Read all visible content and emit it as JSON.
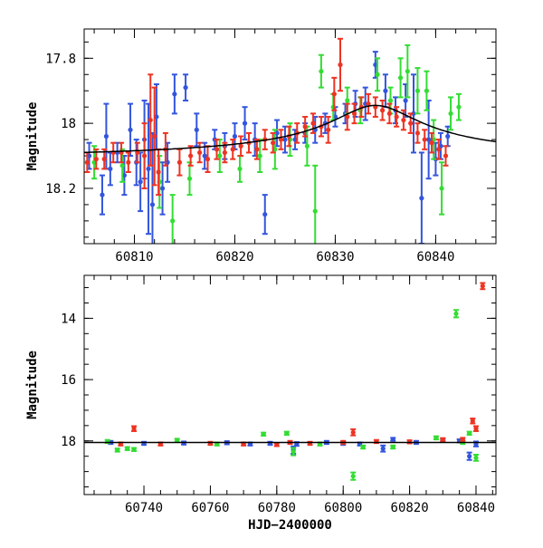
{
  "chart_data": [
    {
      "type": "scatter",
      "ylabel": "Magnitude",
      "xlabel": "",
      "xlim": [
        60805,
        60846
      ],
      "ylim": [
        18.37,
        17.71
      ],
      "y_inverted": true,
      "xticks": [
        60810,
        60820,
        60830,
        60840
      ],
      "yticks": [
        17.8,
        18,
        18.2
      ],
      "model_curve": {
        "type": "line",
        "color": "#000000",
        "peak_x": 60834,
        "peak_y": 17.945,
        "baseline_y": 18.115
      },
      "series": [
        {
          "color": "#3355dd",
          "points": [
            [
              60805.5,
              18.1,
              0.04
            ],
            [
              60806.8,
              18.22,
              0.06
            ],
            [
              60807.2,
              18.04,
              0.1
            ],
            [
              60807.6,
              18.14,
              0.05
            ],
            [
              60808.3,
              18.09,
              0.03
            ],
            [
              60809.0,
              18.16,
              0.06
            ],
            [
              60809.6,
              18.02,
              0.08
            ],
            [
              60810.2,
              18.12,
              0.07
            ],
            [
              60810.6,
              18.18,
              0.09
            ],
            [
              60811.0,
              18.05,
              0.12
            ],
            [
              60811.4,
              18.14,
              0.2
            ],
            [
              60811.8,
              18.25,
              0.22
            ],
            [
              60812.2,
              17.98,
              0.1
            ],
            [
              60812.8,
              18.2,
              0.08
            ],
            [
              60813.3,
              18.12,
              0.06
            ],
            [
              60814.0,
              17.91,
              0.06
            ],
            [
              60815.1,
              17.89,
              0.04
            ],
            [
              60816.2,
              18.02,
              0.05
            ],
            [
              60817.0,
              18.1,
              0.04
            ],
            [
              60818.0,
              18.05,
              0.03
            ],
            [
              60819.0,
              18.07,
              0.04
            ],
            [
              60820.0,
              18.04,
              0.04
            ],
            [
              60821.0,
              18.0,
              0.05
            ],
            [
              60822.0,
              18.05,
              0.05
            ],
            [
              60823.0,
              18.28,
              0.06
            ],
            [
              60824.2,
              18.03,
              0.04
            ],
            [
              60825.0,
              18.05,
              0.04
            ],
            [
              60826.0,
              18.05,
              0.03
            ],
            [
              60827.0,
              18.03,
              0.03
            ],
            [
              60828.0,
              18.02,
              0.04
            ],
            [
              60829.0,
              18.0,
              0.03
            ],
            [
              60830.0,
              17.98,
              0.03
            ],
            [
              60831.0,
              17.97,
              0.03
            ],
            [
              60832.0,
              17.94,
              0.04
            ],
            [
              60833.0,
              17.94,
              0.05
            ],
            [
              60834.0,
              17.82,
              0.04
            ],
            [
              60835.0,
              17.9,
              0.05
            ],
            [
              60836.0,
              17.96,
              0.04
            ],
            [
              60837.0,
              17.93,
              0.05
            ],
            [
              60837.8,
              17.97,
              0.12
            ],
            [
              60838.6,
              18.23,
              0.14
            ],
            [
              60839.3,
              18.05,
              0.12
            ],
            [
              60840.0,
              18.11,
              0.05
            ],
            [
              60840.5,
              18.07,
              0.04
            ],
            [
              60841.2,
              18.04,
              0.03
            ]
          ]
        },
        {
          "color": "#33dd33",
          "points": [
            [
              60806.0,
              18.12,
              0.05
            ],
            [
              60808.8,
              18.13,
              0.05
            ],
            [
              60812.5,
              18.18,
              0.08
            ],
            [
              60813.8,
              18.3,
              0.08
            ],
            [
              60815.5,
              18.17,
              0.05
            ],
            [
              60818.5,
              18.1,
              0.05
            ],
            [
              60820.5,
              18.14,
              0.04
            ],
            [
              60822.5,
              18.1,
              0.05
            ],
            [
              60824.0,
              18.08,
              0.06
            ],
            [
              60825.5,
              18.05,
              0.05
            ],
            [
              60827.2,
              18.07,
              0.06
            ],
            [
              60828.0,
              18.27,
              0.14
            ],
            [
              60828.6,
              17.84,
              0.05
            ],
            [
              60829.8,
              17.95,
              0.04
            ],
            [
              60831.2,
              17.93,
              0.04
            ],
            [
              60832.5,
              17.96,
              0.04
            ],
            [
              60834.2,
              17.85,
              0.05
            ],
            [
              60835.5,
              17.93,
              0.04
            ],
            [
              60836.5,
              17.86,
              0.06
            ],
            [
              60837.2,
              17.84,
              0.08
            ],
            [
              60838.2,
              17.9,
              0.07
            ],
            [
              60839.1,
              17.9,
              0.06
            ],
            [
              60839.8,
              18.05,
              0.06
            ],
            [
              60840.6,
              18.2,
              0.08
            ],
            [
              60841.5,
              17.97,
              0.05
            ],
            [
              60842.3,
              17.95,
              0.04
            ]
          ]
        },
        {
          "color": "#ee3322",
          "points": [
            [
              60805.3,
              18.12,
              0.03
            ],
            [
              60806.2,
              18.11,
              0.03
            ],
            [
              60807.0,
              18.11,
              0.03
            ],
            [
              60807.9,
              18.09,
              0.03
            ],
            [
              60808.7,
              18.09,
              0.03
            ],
            [
              60809.4,
              18.12,
              0.03
            ],
            [
              60810.3,
              18.09,
              0.03
            ],
            [
              60811.0,
              18.1,
              0.1
            ],
            [
              60811.6,
              17.99,
              0.14
            ],
            [
              60812.0,
              18.04,
              0.15
            ],
            [
              60812.4,
              18.15,
              0.07
            ],
            [
              60813.1,
              18.08,
              0.05
            ],
            [
              60814.5,
              18.12,
              0.04
            ],
            [
              60815.6,
              18.1,
              0.03
            ],
            [
              60816.5,
              18.09,
              0.03
            ],
            [
              60817.3,
              18.11,
              0.04
            ],
            [
              60818.2,
              18.08,
              0.03
            ],
            [
              60819.0,
              18.09,
              0.03
            ],
            [
              60819.8,
              18.08,
              0.03
            ],
            [
              60820.6,
              18.07,
              0.03
            ],
            [
              60821.4,
              18.06,
              0.03
            ],
            [
              60822.2,
              18.08,
              0.03
            ],
            [
              60823.0,
              18.05,
              0.03
            ],
            [
              60823.8,
              18.06,
              0.03
            ],
            [
              60824.6,
              18.05,
              0.03
            ],
            [
              60825.4,
              18.04,
              0.03
            ],
            [
              60826.2,
              18.03,
              0.03
            ],
            [
              60827.0,
              18.01,
              0.03
            ],
            [
              60827.8,
              18.0,
              0.03
            ],
            [
              60828.6,
              18.01,
              0.03
            ],
            [
              60829.3,
              18.02,
              0.04
            ],
            [
              60829.9,
              17.91,
              0.05
            ],
            [
              60830.5,
              17.82,
              0.08
            ],
            [
              60831.2,
              17.98,
              0.04
            ],
            [
              60831.9,
              17.97,
              0.03
            ],
            [
              60832.6,
              17.95,
              0.03
            ],
            [
              60833.3,
              17.94,
              0.03
            ],
            [
              60834.0,
              17.95,
              0.03
            ],
            [
              60834.7,
              17.96,
              0.03
            ],
            [
              60835.4,
              17.97,
              0.03
            ],
            [
              60836.1,
              17.98,
              0.03
            ],
            [
              60836.8,
              17.99,
              0.03
            ],
            [
              60837.5,
              18.0,
              0.03
            ],
            [
              60838.2,
              18.03,
              0.03
            ],
            [
              60838.9,
              18.05,
              0.03
            ],
            [
              60839.6,
              18.06,
              0.03
            ],
            [
              60840.3,
              18.08,
              0.03
            ],
            [
              60841.0,
              18.1,
              0.03
            ]
          ]
        }
      ]
    },
    {
      "type": "scatter",
      "ylabel": "Magnitude",
      "xlabel": "HJD−2400000",
      "xlim": [
        60722,
        60846
      ],
      "ylim": [
        19.75,
        12.6
      ],
      "y_inverted": true,
      "xticks": [
        60740,
        60760,
        60780,
        60800,
        60820,
        60840
      ],
      "yticks": [
        14,
        16,
        18
      ],
      "model_curve": {
        "type": "line",
        "color": "#000000",
        "flat_y": 18.05
      },
      "series": [
        {
          "color": "#3355dd",
          "points": [
            [
              60730,
              18.05,
              0.05
            ],
            [
              60740,
              18.08,
              0.05
            ],
            [
              60752,
              18.07,
              0.05
            ],
            [
              60765,
              18.06,
              0.05
            ],
            [
              60772,
              18.1,
              0.05
            ],
            [
              60778,
              18.08,
              0.05
            ],
            [
              60785,
              18.3,
              0.12
            ],
            [
              60786,
              18.1,
              0.06
            ],
            [
              60795,
              18.05,
              0.05
            ],
            [
              60800,
              18.08,
              0.05
            ],
            [
              60805,
              18.1,
              0.05
            ],
            [
              60812,
              18.25,
              0.1
            ],
            [
              60815,
              17.95,
              0.05
            ],
            [
              60822,
              18.05,
              0.05
            ],
            [
              60830,
              17.98,
              0.05
            ],
            [
              60835,
              18.0,
              0.05
            ],
            [
              60838,
              18.5,
              0.12
            ],
            [
              60840,
              18.1,
              0.08
            ]
          ]
        },
        {
          "color": "#33dd33",
          "points": [
            [
              60729,
              18.02,
              0.05
            ],
            [
              60732,
              18.3,
              0.05
            ],
            [
              60735,
              18.25,
              0.05
            ],
            [
              60737,
              18.28,
              0.05
            ],
            [
              60750,
              17.98,
              0.05
            ],
            [
              60762,
              18.1,
              0.05
            ],
            [
              60776,
              17.78,
              0.05
            ],
            [
              60783,
              17.75,
              0.05
            ],
            [
              60785,
              18.35,
              0.12
            ],
            [
              60793,
              18.1,
              0.05
            ],
            [
              60803,
              19.15,
              0.12
            ],
            [
              60806,
              18.2,
              0.05
            ],
            [
              60815,
              18.2,
              0.05
            ],
            [
              60828,
              17.9,
              0.05
            ],
            [
              60834,
              13.85,
              0.12
            ],
            [
              60836,
              18.05,
              0.05
            ],
            [
              60838,
              17.75,
              0.05
            ],
            [
              60840,
              18.55,
              0.1
            ]
          ]
        },
        {
          "color": "#ee3322",
          "points": [
            [
              60733,
              18.1,
              0.05
            ],
            [
              60737,
              17.6,
              0.08
            ],
            [
              60745,
              18.1,
              0.05
            ],
            [
              60760,
              18.08,
              0.05
            ],
            [
              60770,
              18.1,
              0.05
            ],
            [
              60780,
              18.12,
              0.05
            ],
            [
              60784,
              18.05,
              0.05
            ],
            [
              60790,
              18.08,
              0.05
            ],
            [
              60800,
              18.05,
              0.05
            ],
            [
              60803,
              17.72,
              0.1
            ],
            [
              60810,
              18.02,
              0.05
            ],
            [
              60820,
              18.03,
              0.05
            ],
            [
              60830,
              17.96,
              0.05
            ],
            [
              60836,
              17.95,
              0.05
            ],
            [
              60839,
              17.35,
              0.08
            ],
            [
              60840,
              17.6,
              0.08
            ],
            [
              60842,
              12.95,
              0.1
            ]
          ]
        }
      ]
    }
  ]
}
